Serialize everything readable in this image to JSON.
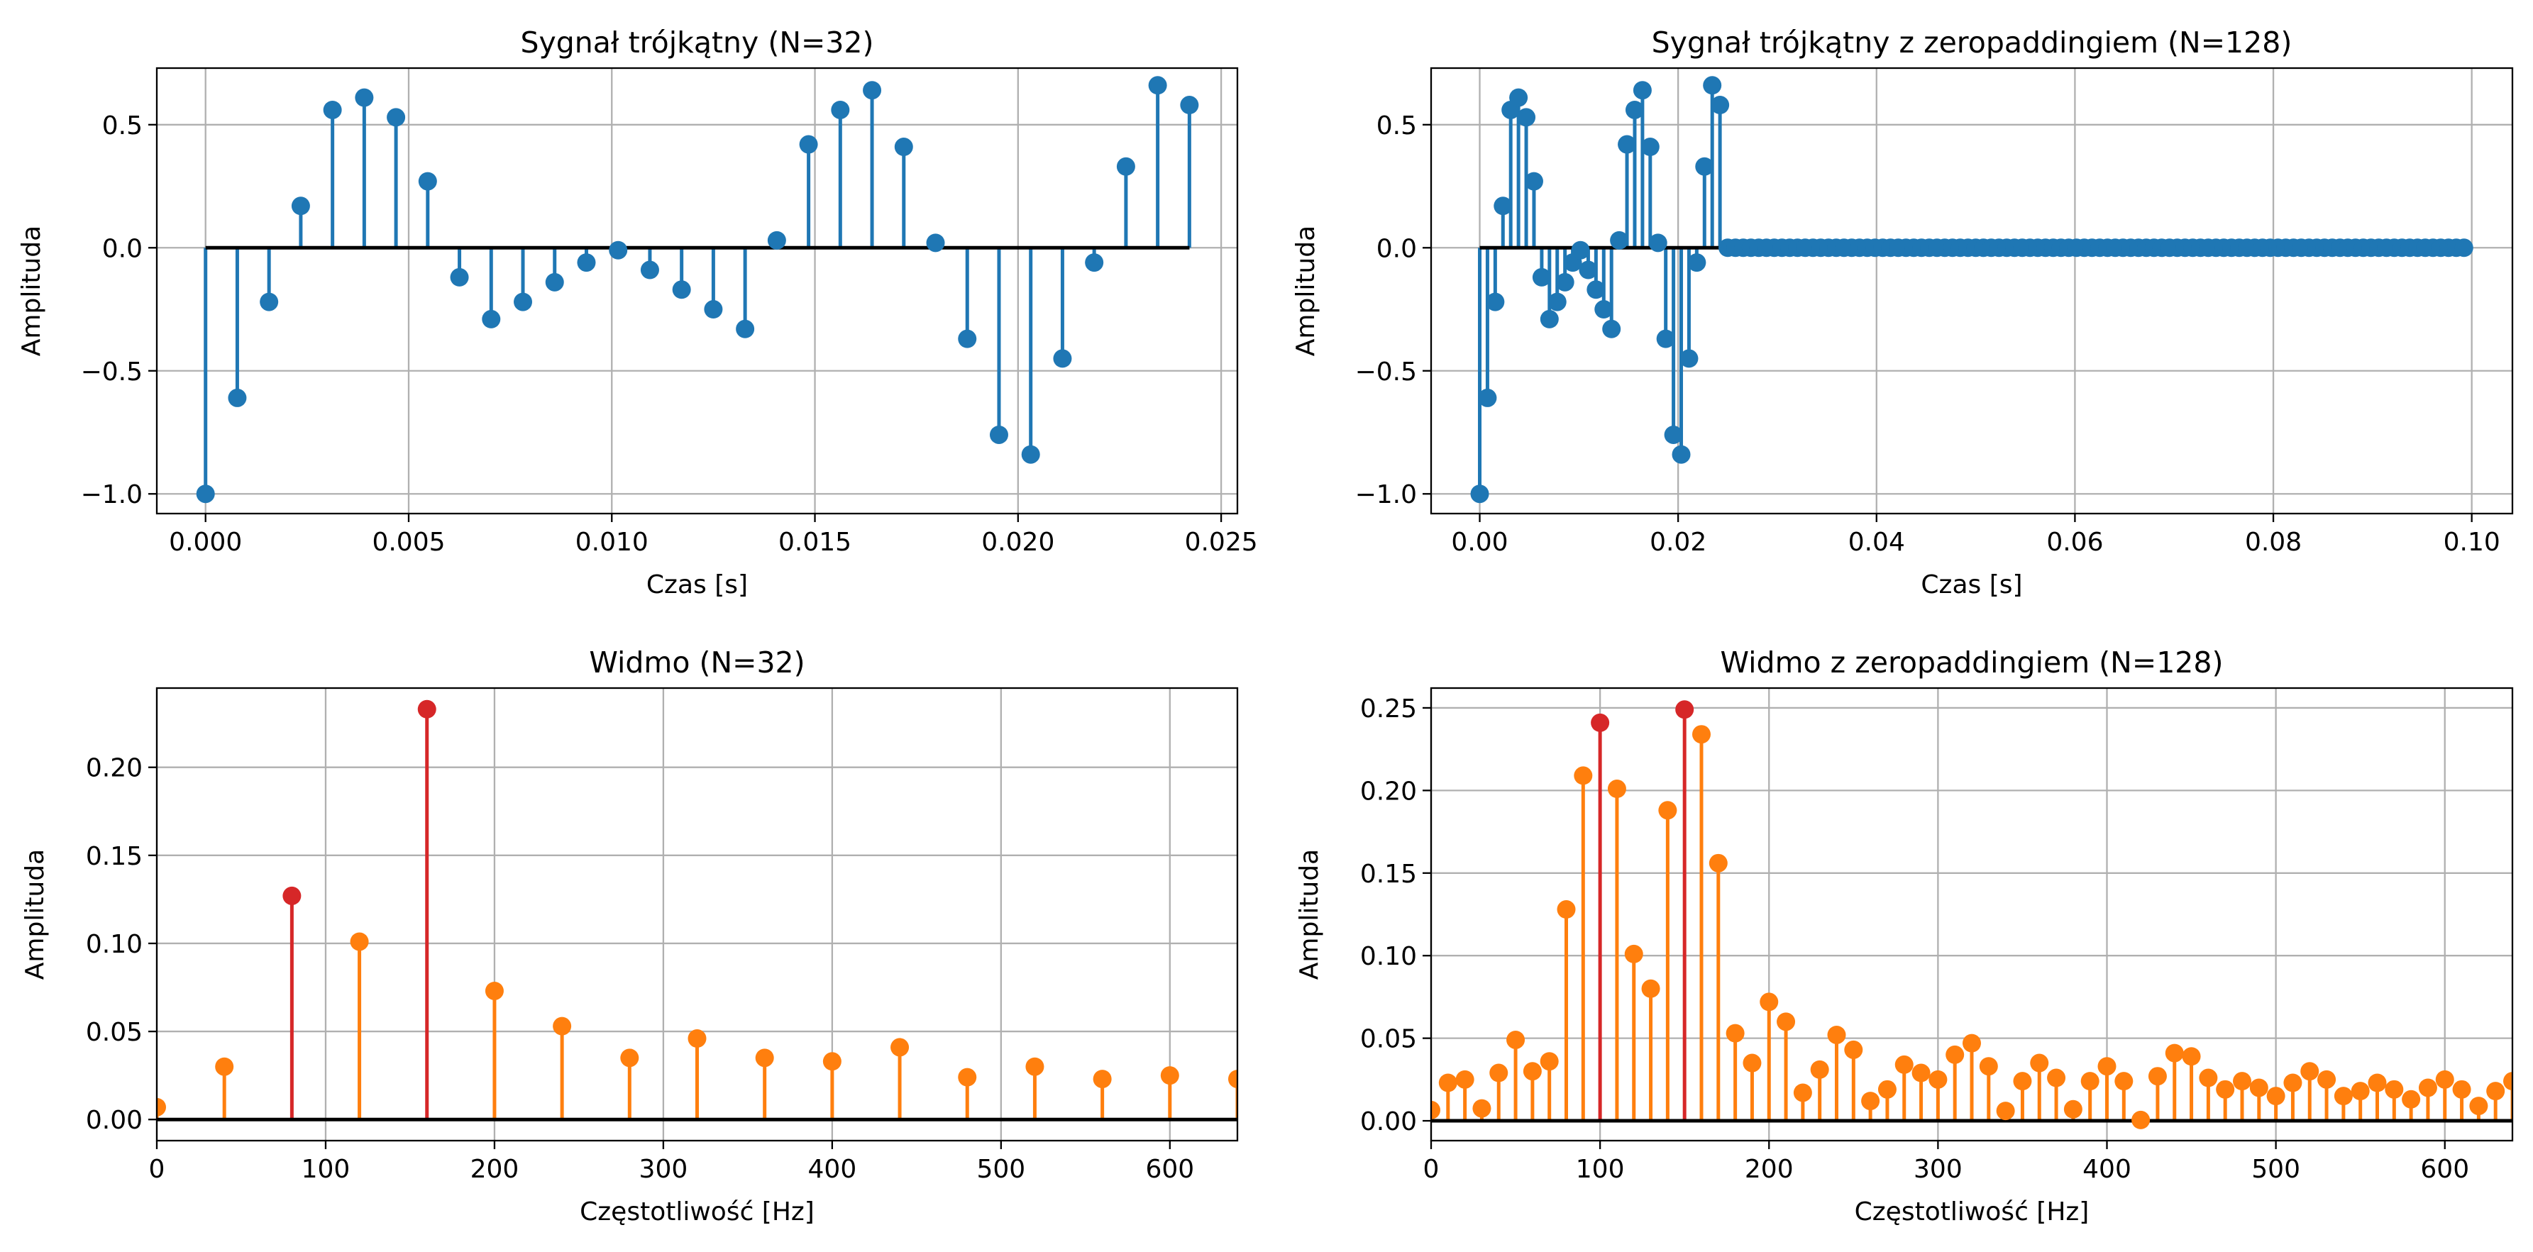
{
  "colors": {
    "signal": "#1f77b4",
    "spectrum": "#ff7f0e",
    "peak": "#d62728",
    "baseline": "#000000",
    "grid": "#b0b0b0"
  },
  "chart_data": [
    {
      "id": "signal32",
      "type": "stem",
      "title": "Sygnał trójkątny (N=32)",
      "xlabel": "Czas [s]",
      "ylabel": "Amplituda",
      "xlim": [
        -0.0012,
        0.0254
      ],
      "ylim": [
        -1.08,
        0.73
      ],
      "xticks": [
        0.0,
        0.005,
        0.01,
        0.015,
        0.02,
        0.025
      ],
      "xtick_labels": [
        "0.000",
        "0.005",
        "0.010",
        "0.015",
        "0.020",
        "0.025"
      ],
      "yticks": [
        -1.0,
        -0.5,
        0.0,
        0.5
      ],
      "ytick_labels": [
        "−1.0",
        "−0.5",
        "0.0",
        "0.5"
      ],
      "grid": true,
      "dt": 0.00078125,
      "values": [
        -1.0,
        -0.61,
        -0.22,
        0.17,
        0.56,
        0.61,
        0.53,
        0.27,
        -0.12,
        -0.29,
        -0.22,
        -0.14,
        -0.06,
        -0.01,
        -0.09,
        -0.17,
        -0.25,
        -0.33,
        0.03,
        0.42,
        0.56,
        0.64,
        0.41,
        0.02,
        -0.37,
        -0.76,
        -0.84,
        -0.45,
        -0.06,
        0.33,
        0.66,
        0.58
      ],
      "baseline_x": [
        0.0,
        0.02422
      ]
    },
    {
      "id": "signal128",
      "type": "stem",
      "title": "Sygnał trójkątny z zeropaddingiem (N=128)",
      "xlabel": "Czas [s]",
      "ylabel": "Amplituda",
      "xlim": [
        -0.0049,
        0.1041
      ],
      "ylim": [
        -1.08,
        0.73
      ],
      "xticks": [
        0.0,
        0.02,
        0.04,
        0.06,
        0.08,
        0.1
      ],
      "xtick_labels": [
        "0.00",
        "0.02",
        "0.04",
        "0.06",
        "0.08",
        "0.10"
      ],
      "yticks": [
        -1.0,
        -0.5,
        0.0,
        0.5
      ],
      "ytick_labels": [
        "−1.0",
        "−0.5",
        "0.0",
        "0.5"
      ],
      "grid": true,
      "dt": 0.00078125,
      "n_total": 128,
      "values": [
        -1.0,
        -0.61,
        -0.22,
        0.17,
        0.56,
        0.61,
        0.53,
        0.27,
        -0.12,
        -0.29,
        -0.22,
        -0.14,
        -0.06,
        -0.01,
        -0.09,
        -0.17,
        -0.25,
        -0.33,
        0.03,
        0.42,
        0.56,
        0.64,
        0.41,
        0.02,
        -0.37,
        -0.76,
        -0.84,
        -0.45,
        -0.06,
        0.33,
        0.66,
        0.58
      ],
      "padding_value": 0.0,
      "baseline_x": [
        0.0,
        0.09922
      ]
    },
    {
      "id": "spectrum32",
      "type": "stem",
      "title": "Widmo (N=32)",
      "xlabel": "Częstotliwość [Hz]",
      "ylabel": "Amplituda",
      "xlim": [
        0,
        640
      ],
      "ylim": [
        -0.012,
        0.245
      ],
      "xticks": [
        0,
        100,
        200,
        300,
        400,
        500,
        600
      ],
      "xtick_labels": [
        "0",
        "100",
        "200",
        "300",
        "400",
        "500",
        "600"
      ],
      "yticks": [
        0.0,
        0.05,
        0.1,
        0.15,
        0.2
      ],
      "ytick_labels": [
        "0.00",
        "0.05",
        "0.10",
        "0.15",
        "0.20"
      ],
      "grid": true,
      "x": [
        0,
        40,
        80,
        120,
        160,
        200,
        240,
        280,
        320,
        360,
        400,
        440,
        480,
        520,
        560,
        600,
        640
      ],
      "values": [
        0.007,
        0.03,
        0.127,
        0.101,
        0.233,
        0.073,
        0.053,
        0.035,
        0.046,
        0.035,
        0.033,
        0.041,
        0.024,
        0.03,
        0.023,
        0.025,
        0.023
      ],
      "highlighted_x": [
        80,
        160
      ]
    },
    {
      "id": "spectrum128",
      "type": "stem",
      "title": "Widmo z zeropaddingiem (N=128)",
      "xlabel": "Częstotliwość [Hz]",
      "ylabel": "Amplituda",
      "xlim": [
        0,
        640
      ],
      "ylim": [
        -0.012,
        0.262
      ],
      "xticks": [
        0,
        100,
        200,
        300,
        400,
        500,
        600
      ],
      "xtick_labels": [
        "0",
        "100",
        "200",
        "300",
        "400",
        "500",
        "600"
      ],
      "yticks": [
        0.0,
        0.05,
        0.1,
        0.15,
        0.2,
        0.25
      ],
      "ytick_labels": [
        "0.00",
        "0.05",
        "0.10",
        "0.15",
        "0.20",
        "0.25"
      ],
      "grid": true,
      "x_step": 10,
      "values": [
        0.0065,
        0.023,
        0.025,
        0.0075,
        0.029,
        0.049,
        0.03,
        0.036,
        0.128,
        0.209,
        0.241,
        0.201,
        0.101,
        0.08,
        0.188,
        0.249,
        0.234,
        0.156,
        0.053,
        0.035,
        0.072,
        0.06,
        0.017,
        0.031,
        0.052,
        0.043,
        0.012,
        0.019,
        0.034,
        0.029,
        0.025,
        0.04,
        0.047,
        0.033,
        0.006,
        0.024,
        0.035,
        0.026,
        0.007,
        0.024,
        0.033,
        0.024,
        0.0005,
        0.027,
        0.041,
        0.039,
        0.026,
        0.019,
        0.024,
        0.02,
        0.015,
        0.023,
        0.03,
        0.025,
        0.015,
        0.018,
        0.023,
        0.019,
        0.013,
        0.02,
        0.025,
        0.019,
        0.009,
        0.018,
        0.024
      ],
      "highlighted_x": [
        100,
        150
      ]
    }
  ]
}
